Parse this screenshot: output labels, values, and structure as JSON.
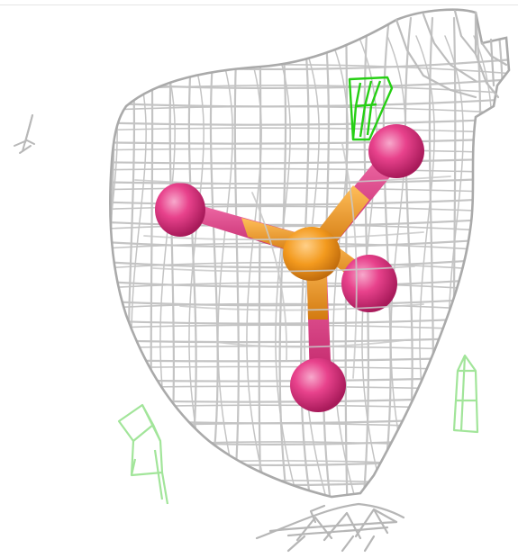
{
  "scene": {
    "background": "#ffffff",
    "colors": {
      "mesh": "#c2c2c2",
      "mesh_shadow": "#9a9a9a",
      "phosphorus": "#f39a1e",
      "phosphorus_dark": "#c96e0a",
      "oxygen": "#e8428c",
      "oxygen_dark": "#b51c61",
      "contour_bright": "#2ad11a",
      "contour_pale": "#a6e8a0"
    },
    "molecule": {
      "center_atom": "phosphorus",
      "ligand_atoms": [
        "oxygen",
        "oxygen",
        "oxygen",
        "oxygen"
      ],
      "bond_count": 4
    },
    "mesh_objects": [
      "main-density-mesh",
      "lower-density-fragment",
      "left-density-fragment"
    ],
    "contour_objects": [
      "green-contour-top",
      "green-contour-left",
      "green-contour-right"
    ]
  }
}
